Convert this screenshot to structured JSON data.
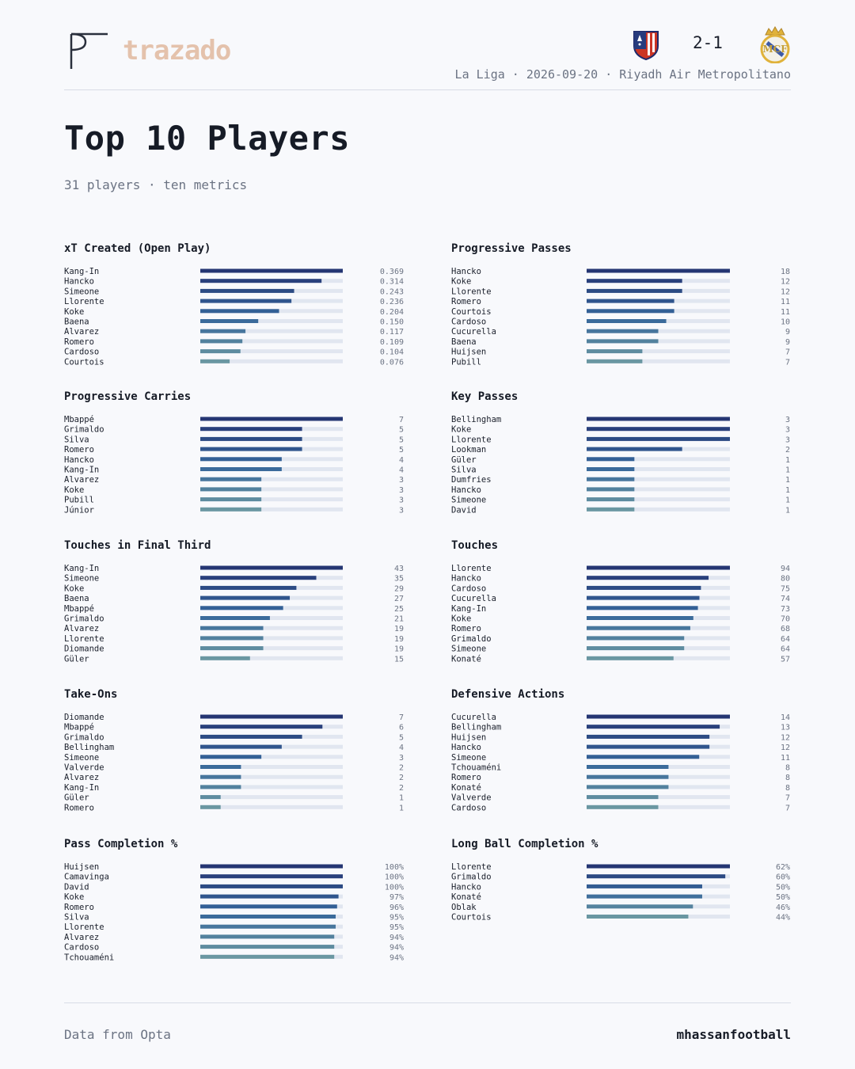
{
  "brand": {
    "name": "trazado"
  },
  "match": {
    "score": "2-1",
    "info": "La Liga · 2026-09-20 · Riyadh Air Metropolitano",
    "home_crest_icon": "atletico-crest-icon",
    "away_crest_icon": "real-madrid-crest-icon"
  },
  "page": {
    "title": "Top 10 Players",
    "subtitle": "31 players · ten metrics"
  },
  "footer": {
    "source": "Data from Opta",
    "author": "mhassanfootball"
  },
  "colors": {
    "bar_dark": "#253673",
    "bar_mid": "#35659a",
    "bar_light": "#6a97a2",
    "track": "#e1e6f0",
    "brand": "#e4c2ac"
  },
  "chart_data": [
    {
      "type": "bar",
      "title": "xT Created (Open Play)",
      "categories": [
        "Kang-In",
        "Hancko",
        "Simeone",
        "Llorente",
        "Koke",
        "Baena",
        "Alvarez",
        "Romero",
        "Cardoso",
        "Courtois"
      ],
      "values": [
        0.369,
        0.314,
        0.243,
        0.236,
        0.204,
        0.15,
        0.117,
        0.109,
        0.104,
        0.076
      ],
      "labels": [
        "0.369",
        "0.314",
        "0.243",
        "0.236",
        "0.204",
        "0.150",
        "0.117",
        "0.109",
        "0.104",
        "0.076"
      ]
    },
    {
      "type": "bar",
      "title": "Progressive Passes",
      "categories": [
        "Hancko",
        "Koke",
        "Llorente",
        "Romero",
        "Courtois",
        "Cardoso",
        "Cucurella",
        "Baena",
        "Huijsen",
        "Pubill"
      ],
      "values": [
        18,
        12,
        12,
        11,
        11,
        10,
        9,
        9,
        7,
        7
      ],
      "labels": [
        "18",
        "12",
        "12",
        "11",
        "11",
        "10",
        "9",
        "9",
        "7",
        "7"
      ]
    },
    {
      "type": "bar",
      "title": "Progressive Carries",
      "categories": [
        "Mbappé",
        "Grimaldo",
        "Silva",
        "Romero",
        "Hancko",
        "Kang-In",
        "Alvarez",
        "Koke",
        "Pubill",
        "Júnior"
      ],
      "values": [
        7,
        5,
        5,
        5,
        4,
        4,
        3,
        3,
        3,
        3
      ],
      "labels": [
        "7",
        "5",
        "5",
        "5",
        "4",
        "4",
        "3",
        "3",
        "3",
        "3"
      ]
    },
    {
      "type": "bar",
      "title": "Key Passes",
      "categories": [
        "Bellingham",
        "Koke",
        "Llorente",
        "Lookman",
        "Güler",
        "Silva",
        "Dumfries",
        "Hancko",
        "Simeone",
        "David"
      ],
      "values": [
        3,
        3,
        3,
        2,
        1,
        1,
        1,
        1,
        1,
        1
      ],
      "labels": [
        "3",
        "3",
        "3",
        "2",
        "1",
        "1",
        "1",
        "1",
        "1",
        "1"
      ]
    },
    {
      "type": "bar",
      "title": "Touches in Final Third",
      "categories": [
        "Kang-In",
        "Simeone",
        "Koke",
        "Baena",
        "Mbappé",
        "Grimaldo",
        "Alvarez",
        "Llorente",
        "Diomande",
        "Güler"
      ],
      "values": [
        43,
        35,
        29,
        27,
        25,
        21,
        19,
        19,
        19,
        15
      ],
      "labels": [
        "43",
        "35",
        "29",
        "27",
        "25",
        "21",
        "19",
        "19",
        "19",
        "15"
      ]
    },
    {
      "type": "bar",
      "title": "Touches",
      "categories": [
        "Llorente",
        "Hancko",
        "Cardoso",
        "Cucurella",
        "Kang-In",
        "Koke",
        "Romero",
        "Grimaldo",
        "Simeone",
        "Konaté"
      ],
      "values": [
        94,
        80,
        75,
        74,
        73,
        70,
        68,
        64,
        64,
        57
      ],
      "labels": [
        "94",
        "80",
        "75",
        "74",
        "73",
        "70",
        "68",
        "64",
        "64",
        "57"
      ]
    },
    {
      "type": "bar",
      "title": "Take-Ons",
      "categories": [
        "Diomande",
        "Mbappé",
        "Grimaldo",
        "Bellingham",
        "Simeone",
        "Valverde",
        "Alvarez",
        "Kang-In",
        "Güler",
        "Romero"
      ],
      "values": [
        7,
        6,
        5,
        4,
        3,
        2,
        2,
        2,
        1,
        1
      ],
      "labels": [
        "7",
        "6",
        "5",
        "4",
        "3",
        "2",
        "2",
        "2",
        "1",
        "1"
      ]
    },
    {
      "type": "bar",
      "title": "Defensive Actions",
      "categories": [
        "Cucurella",
        "Bellingham",
        "Huijsen",
        "Hancko",
        "Simeone",
        "Tchouaméni",
        "Romero",
        "Konaté",
        "Valverde",
        "Cardoso"
      ],
      "values": [
        14,
        13,
        12,
        12,
        11,
        8,
        8,
        8,
        7,
        7
      ],
      "labels": [
        "14",
        "13",
        "12",
        "12",
        "11",
        "8",
        "8",
        "8",
        "7",
        "7"
      ]
    },
    {
      "type": "bar",
      "title": "Pass Completion %",
      "categories": [
        "Huijsen",
        "Camavinga",
        "David",
        "Koke",
        "Romero",
        "Silva",
        "Llorente",
        "Alvarez",
        "Cardoso",
        "Tchouaméni"
      ],
      "values": [
        100,
        100,
        100,
        97,
        96,
        95,
        95,
        94,
        94,
        94
      ],
      "labels": [
        "100%",
        "100%",
        "100%",
        "97%",
        "96%",
        "95%",
        "95%",
        "94%",
        "94%",
        "94%"
      ]
    },
    {
      "type": "bar",
      "title": "Long Ball Completion %",
      "categories": [
        "Llorente",
        "Grimaldo",
        "Hancko",
        "Konaté",
        "Oblak",
        "Courtois"
      ],
      "values": [
        62,
        60,
        50,
        50,
        46,
        44
      ],
      "labels": [
        "62%",
        "60%",
        "50%",
        "50%",
        "46%",
        "44%"
      ]
    }
  ]
}
